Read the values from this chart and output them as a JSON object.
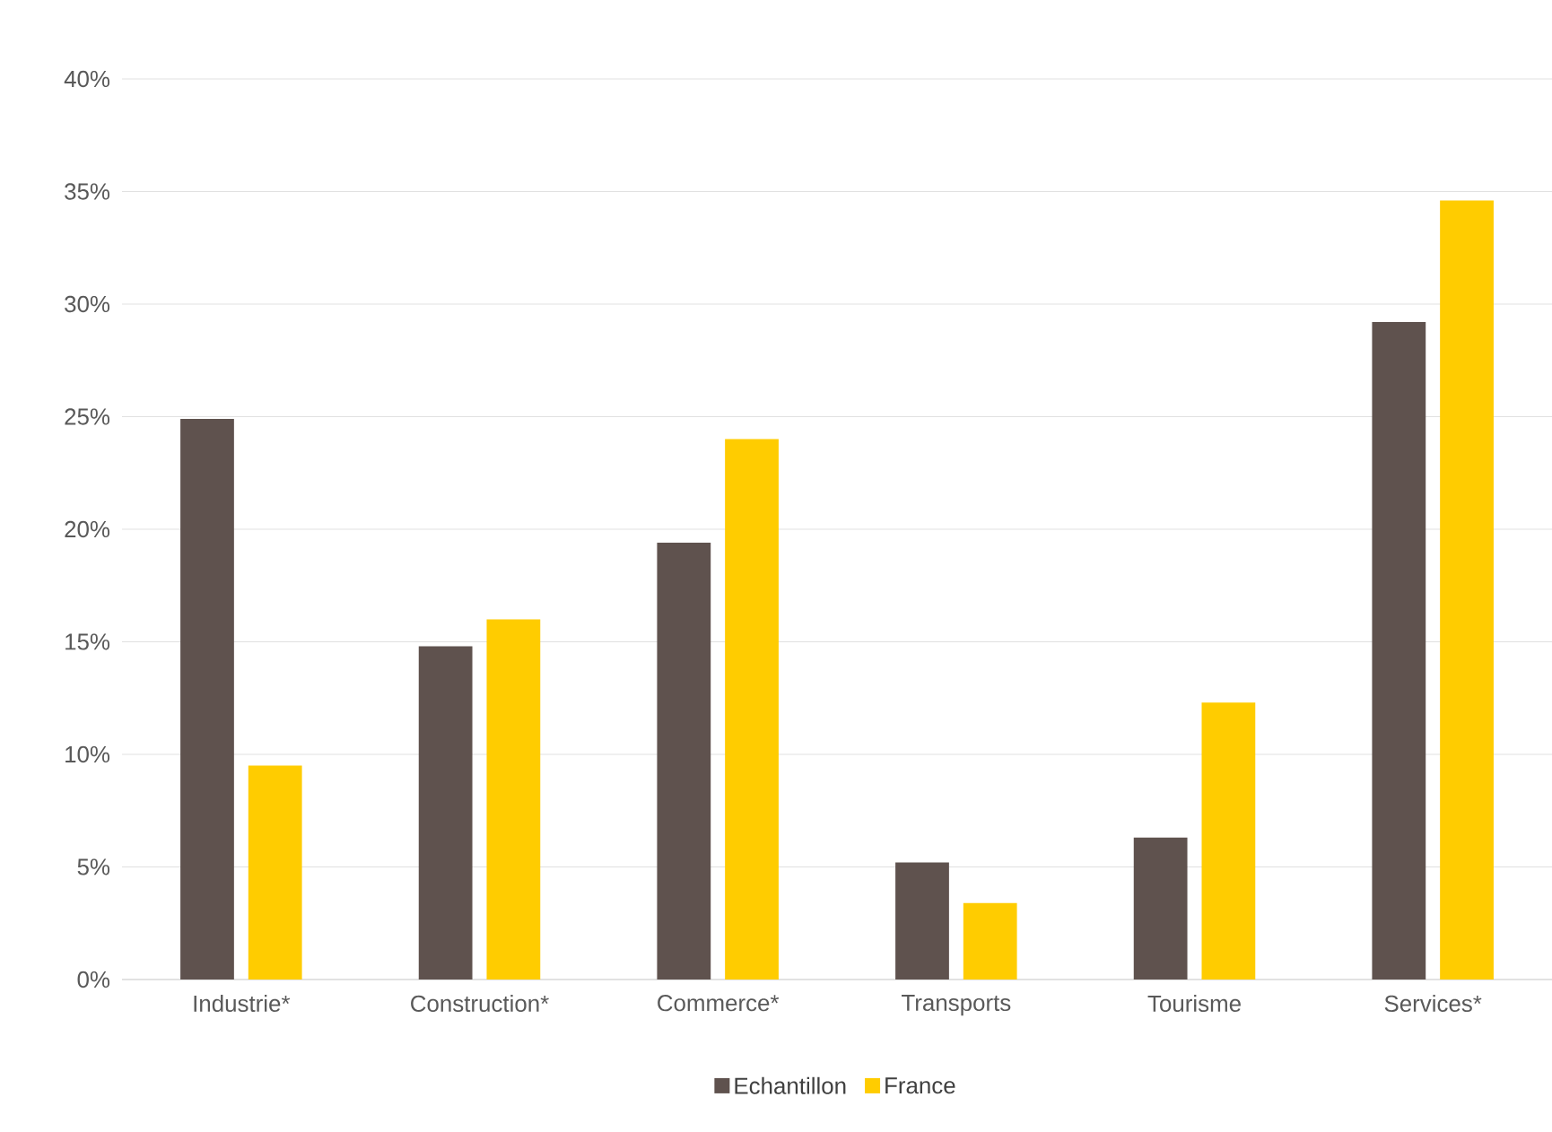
{
  "chart_data": {
    "type": "bar",
    "categories": [
      "Industrie*",
      "Construction*",
      "Commerce*",
      "Transports",
      "Tourisme",
      "Services*"
    ],
    "series": [
      {
        "name": "Echantillon",
        "color": "#5f524e",
        "values": [
          24.9,
          14.8,
          19.4,
          5.2,
          6.3,
          29.2
        ]
      },
      {
        "name": "France",
        "color": "#ffcc00",
        "values": [
          9.5,
          16.0,
          24.0,
          3.4,
          12.3,
          34.6
        ]
      }
    ],
    "ylim": [
      0,
      40
    ],
    "yticks": [
      {
        "value": 0,
        "label": "0%"
      },
      {
        "value": 5,
        "label": "5%"
      },
      {
        "value": 10,
        "label": "10%"
      },
      {
        "value": 15,
        "label": "15%"
      },
      {
        "value": 20,
        "label": "20%"
      },
      {
        "value": 25,
        "label": "25%"
      },
      {
        "value": 30,
        "label": "30%"
      },
      {
        "value": 35,
        "label": "35%"
      },
      {
        "value": 40,
        "label": "40%"
      }
    ],
    "grid": "y",
    "legend": "bottom"
  }
}
